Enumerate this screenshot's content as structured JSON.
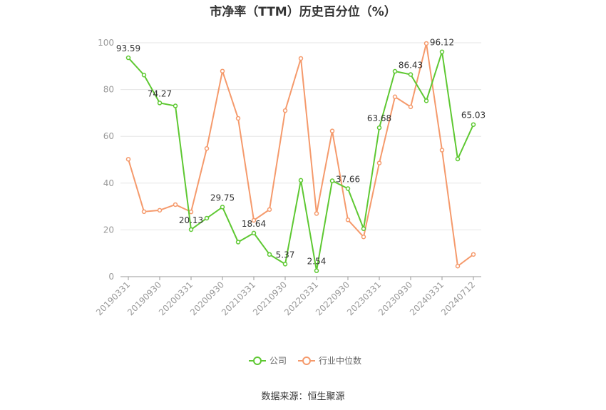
{
  "chart_data": {
    "type": "line",
    "title": "市净率（TTM）历史百分位（%）",
    "xlabel": "",
    "ylabel": "",
    "ylim": [
      0,
      100
    ],
    "yticks": [
      0,
      20,
      40,
      60,
      80,
      100
    ],
    "x": [
      "20190331",
      "20190630",
      "20190930",
      "20191231",
      "20200331",
      "20200630",
      "20200930",
      "20201231",
      "20210331",
      "20210630",
      "20210930",
      "20211231",
      "20220331",
      "20220630",
      "20220930",
      "20221231",
      "20230331",
      "20230630",
      "20230930",
      "20231231",
      "20240331",
      "20240630",
      "20240712"
    ],
    "xtick_labels": [
      "20190331",
      "20190930",
      "20200331",
      "20200930",
      "20210331",
      "20210930",
      "20220331",
      "20220930",
      "20230331",
      "20230930",
      "20240331",
      "20240712"
    ],
    "series": [
      {
        "name": "公司",
        "color": "#5ec832",
        "values": [
          93.59,
          86.2,
          74.27,
          73.0,
          20.13,
          25.0,
          29.75,
          14.8,
          18.64,
          9.5,
          5.37,
          41.2,
          2.54,
          41.0,
          37.66,
          20.5,
          63.68,
          87.8,
          86.43,
          75.2,
          96.12,
          50.3,
          65.03
        ],
        "labels": [
          "93.59",
          "",
          "74.27",
          "",
          "20.13",
          "",
          "29.75",
          "",
          "18.64",
          "",
          "5.37",
          "",
          "2.54",
          "",
          "37.66",
          "",
          "63.68",
          "",
          "86.43",
          "",
          "96.12",
          "",
          "65.03"
        ]
      },
      {
        "name": "行业中位数",
        "color": "#f59a6c",
        "values": [
          50.2,
          27.8,
          28.4,
          30.8,
          27.7,
          54.8,
          87.9,
          67.7,
          24.1,
          28.7,
          71.0,
          93.3,
          27.0,
          62.3,
          24.3,
          17.0,
          48.6,
          76.9,
          72.6,
          99.7,
          54.1,
          4.5,
          9.5
        ]
      }
    ],
    "legend": {
      "position": "bottom-center"
    },
    "grid": true
  },
  "source_text": "数据来源：恒生聚源"
}
